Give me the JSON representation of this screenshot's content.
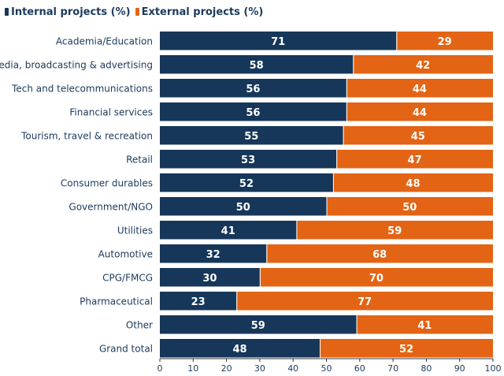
{
  "legend": {
    "internal_label": "Internal projects (%)",
    "external_label": "External projects (%)"
  },
  "colors": {
    "internal": "#16375a",
    "external": "#e36414",
    "text": "#1b3a5c",
    "axis": "#333333"
  },
  "chart_data": {
    "type": "bar",
    "orientation": "horizontal",
    "stacked": true,
    "categories": [
      "Academia/Education",
      "Media, broadcasting & advertising",
      "Tech and telecommunications",
      "Financial services",
      "Tourism, travel & recreation",
      "Retail",
      "Consumer durables",
      "Government/NGO",
      "Utilities",
      "Automotive",
      "CPG/FMCG",
      "Pharmaceutical",
      "Other",
      "Grand total"
    ],
    "series": [
      {
        "name": "Internal projects (%)",
        "values": [
          71,
          58,
          56,
          56,
          55,
          53,
          52,
          50,
          41,
          32,
          30,
          23,
          59,
          48
        ]
      },
      {
        "name": "External projects (%)",
        "values": [
          29,
          42,
          44,
          44,
          45,
          47,
          48,
          50,
          59,
          68,
          70,
          77,
          41,
          52
        ]
      }
    ],
    "xlim": [
      0,
      100
    ],
    "xticks": [
      0,
      10,
      20,
      30,
      40,
      50,
      60,
      70,
      80,
      90,
      100
    ],
    "title": "",
    "xlabel": "",
    "ylabel": "",
    "grid": false,
    "legend_position": "top-left"
  }
}
